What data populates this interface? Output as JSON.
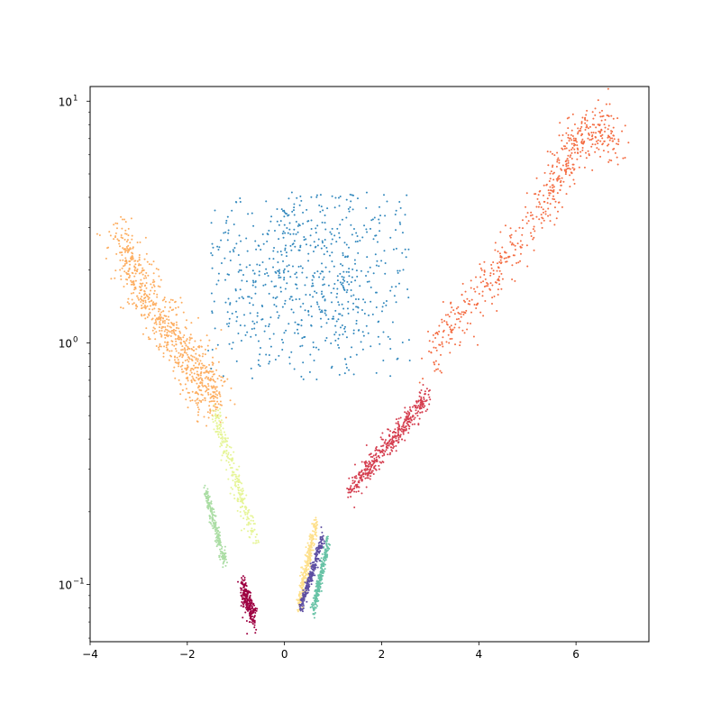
{
  "chart_data": {
    "type": "scatter",
    "title": "",
    "xlabel": "",
    "ylabel": "",
    "xlim": [
      -4,
      7.5
    ],
    "ylim": [
      0.058,
      11.5
    ],
    "yscale": "log",
    "grid": false,
    "legend": "none",
    "x_ticks": [
      -4,
      -2,
      0,
      2,
      4,
      6
    ],
    "x_tick_labels": [
      "−4",
      "−2",
      "0",
      "2",
      "4",
      "6"
    ],
    "y_ticks": [
      0.1,
      1,
      10
    ],
    "y_tick_labels": [
      {
        "base": "10",
        "exp": "−1"
      },
      {
        "base": "10",
        "exp": "0"
      },
      {
        "base": "10",
        "exp": "1"
      }
    ],
    "clusters": [
      {
        "color": "#9e0142",
        "count": 250,
        "kind": "segment",
        "p0": [
          -0.88,
          0.098
        ],
        "p1": [
          -0.62,
          0.073
        ],
        "spread": 0.05,
        "jitter": 0.08
      },
      {
        "color": "#d53e4f",
        "count": 450,
        "kind": "segment",
        "p0": [
          1.35,
          0.245
        ],
        "p1": [
          2.95,
          0.6
        ],
        "spread": 0.09,
        "jitter": 0.07
      },
      {
        "color": "#f46d43",
        "count": 600,
        "kind": "poly",
        "pts": [
          [
            2.95,
            0.8
          ],
          [
            3.5,
            1.25
          ],
          [
            4.2,
            1.75
          ],
          [
            4.8,
            2.6
          ],
          [
            5.4,
            4.0
          ],
          [
            5.8,
            5.5
          ],
          [
            6.0,
            7.5
          ],
          [
            6.5,
            7.5
          ],
          [
            6.85,
            6.6
          ]
        ],
        "spread": 0.14,
        "jitter": 0.1
      },
      {
        "color": "#fdae61",
        "count": 800,
        "kind": "poly",
        "pts": [
          [
            -3.4,
            2.8
          ],
          [
            -3.1,
            1.9
          ],
          [
            -2.6,
            1.3
          ],
          [
            -2.1,
            0.95
          ],
          [
            -1.7,
            0.72
          ],
          [
            -1.45,
            0.55
          ]
        ],
        "spread": 0.2,
        "jitter": 0.09
      },
      {
        "color": "#fee08b",
        "count": 260,
        "kind": "segment",
        "p0": [
          0.3,
          0.083
        ],
        "p1": [
          0.65,
          0.18
        ],
        "spread": 0.05,
        "jitter": 0.06
      },
      {
        "color": "#e6f598",
        "count": 260,
        "kind": "segment",
        "p0": [
          -1.45,
          0.52
        ],
        "p1": [
          -0.6,
          0.15
        ],
        "spread": 0.09,
        "jitter": 0.06
      },
      {
        "color": "#abdda4",
        "count": 200,
        "kind": "segment",
        "p0": [
          -1.62,
          0.245
        ],
        "p1": [
          -1.22,
          0.122
        ],
        "spread": 0.045,
        "jitter": 0.05
      },
      {
        "color": "#66c2a5",
        "count": 250,
        "kind": "segment",
        "p0": [
          0.58,
          0.077
        ],
        "p1": [
          0.9,
          0.152
        ],
        "spread": 0.04,
        "jitter": 0.05
      },
      {
        "color": "#5e4fa2",
        "count": 250,
        "kind": "segment",
        "p0": [
          0.33,
          0.08
        ],
        "p1": [
          0.8,
          0.16
        ],
        "spread": 0.035,
        "jitter": 0.05
      },
      {
        "color": "#3288bd",
        "count": 700,
        "kind": "cloud",
        "center": [
          0.5,
          2.0
        ],
        "spread_x": 1.3,
        "spread_y": 0.28,
        "x_range": [
          -1.6,
          2.6
        ],
        "y_range": [
          0.7,
          4.2
        ]
      }
    ]
  }
}
